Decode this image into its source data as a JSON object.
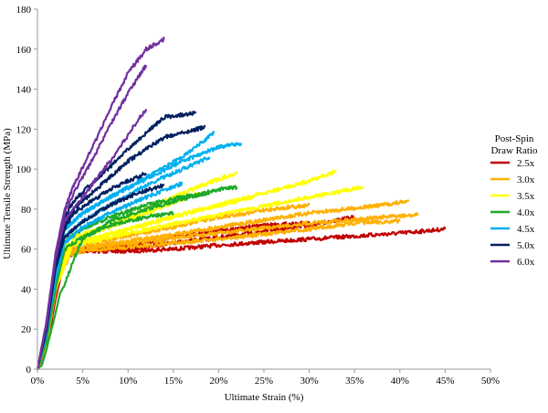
{
  "chart_data": {
    "type": "line",
    "xlabel": "Ultimate  Strain  (%)",
    "ylabel": "Ultimate  Tensile  Strength  (MPa)",
    "xlim": [
      0,
      50
    ],
    "ylim": [
      0,
      180
    ],
    "x_ticks": [
      "0%",
      "5%",
      "10%",
      "15%",
      "20%",
      "25%",
      "30%",
      "35%",
      "40%",
      "45%",
      "50%"
    ],
    "y_ticks": [
      "0",
      "20",
      "40",
      "60",
      "80",
      "100",
      "120",
      "140",
      "160",
      "180"
    ],
    "grid": false,
    "legend": {
      "title_line1": "Post-Spin",
      "title_line2": "Draw Ratio",
      "position": "right"
    },
    "series": [
      {
        "name": "2.5x",
        "color": "#C00000",
        "curves": [
          [
            [
              0,
              0
            ],
            [
              1,
              12
            ],
            [
              2,
              38
            ],
            [
              3,
              58
            ],
            [
              4,
              60
            ],
            [
              6,
              59
            ],
            [
              10,
              59
            ],
            [
              15,
              60
            ],
            [
              20,
              62
            ],
            [
              30,
              65
            ],
            [
              40,
              68
            ],
            [
              45,
              70
            ]
          ],
          [
            [
              0,
              0
            ],
            [
              1,
              15
            ],
            [
              2,
              40
            ],
            [
              3,
              59
            ],
            [
              5,
              60
            ],
            [
              10,
              60
            ],
            [
              15,
              63
            ],
            [
              20,
              66
            ],
            [
              30,
              72
            ],
            [
              35,
              76
            ]
          ],
          [
            [
              0,
              0
            ],
            [
              1,
              10
            ],
            [
              2,
              35
            ],
            [
              3,
              55
            ],
            [
              4,
              58
            ],
            [
              6,
              60
            ],
            [
              10,
              62
            ],
            [
              15,
              66
            ],
            [
              20,
              69
            ],
            [
              25,
              72
            ],
            [
              30,
              73
            ]
          ]
        ]
      },
      {
        "name": "3.0x",
        "color": "#FFB000",
        "curves": [
          [
            [
              0,
              0
            ],
            [
              1,
              15
            ],
            [
              2,
              42
            ],
            [
              3,
              60
            ],
            [
              5,
              61
            ],
            [
              10,
              64
            ],
            [
              20,
              71
            ],
            [
              30,
              78
            ],
            [
              38,
              82
            ],
            [
              41,
              84
            ]
          ],
          [
            [
              0,
              0
            ],
            [
              1,
              14
            ],
            [
              2,
              40
            ],
            [
              3,
              58
            ],
            [
              5,
              60
            ],
            [
              10,
              63
            ],
            [
              20,
              68
            ],
            [
              30,
              73
            ],
            [
              38,
              76
            ],
            [
              42,
              77
            ]
          ],
          [
            [
              0,
              0
            ],
            [
              1,
              12
            ],
            [
              2,
              38
            ],
            [
              3,
              56
            ],
            [
              5,
              59
            ],
            [
              10,
              61
            ],
            [
              20,
              65
            ],
            [
              30,
              70
            ],
            [
              35,
              73
            ],
            [
              40,
              74
            ]
          ],
          [
            [
              0,
              0
            ],
            [
              1,
              13
            ],
            [
              2,
              40
            ],
            [
              4,
              62
            ],
            [
              8,
              65
            ],
            [
              14,
              70
            ],
            [
              20,
              76
            ],
            [
              26,
              80
            ],
            [
              30,
              82
            ]
          ]
        ]
      },
      {
        "name": "3.5x",
        "color": "#FFFF00",
        "curves": [
          [
            [
              0,
              0
            ],
            [
              1,
              16
            ],
            [
              2,
              44
            ],
            [
              3,
              62
            ],
            [
              5,
              64
            ],
            [
              10,
              70
            ],
            [
              20,
              82
            ],
            [
              30,
              94
            ],
            [
              33,
              99
            ]
          ],
          [
            [
              0,
              0
            ],
            [
              1,
              15
            ],
            [
              2,
              42
            ],
            [
              3,
              61
            ],
            [
              5,
              63
            ],
            [
              10,
              68
            ],
            [
              20,
              77
            ],
            [
              30,
              86
            ],
            [
              36,
              91
            ]
          ],
          [
            [
              0,
              0
            ],
            [
              1,
              16
            ],
            [
              2,
              44
            ],
            [
              4,
              66
            ],
            [
              8,
              72
            ],
            [
              12,
              80
            ],
            [
              16,
              88
            ],
            [
              20,
              95
            ],
            [
              22,
              98
            ]
          ],
          [
            [
              0,
              0
            ],
            [
              1,
              15
            ],
            [
              2,
              43
            ],
            [
              4,
              65
            ],
            [
              8,
              71
            ],
            [
              12,
              78
            ],
            [
              16,
              85
            ],
            [
              18,
              88
            ]
          ],
          [
            [
              0,
              0
            ],
            [
              1,
              14
            ],
            [
              2,
              40
            ],
            [
              4,
              63
            ],
            [
              10,
              70
            ],
            [
              18,
              80
            ],
            [
              24,
              86
            ]
          ]
        ]
      },
      {
        "name": "4.0x",
        "color": "#1EAA28",
        "curves": [
          [
            [
              0,
              0
            ],
            [
              0.5,
              2
            ],
            [
              1,
              10
            ],
            [
              2,
              28
            ],
            [
              2.5,
              38
            ],
            [
              3,
              42
            ],
            [
              4,
              55
            ],
            [
              5,
              65
            ],
            [
              8,
              74
            ],
            [
              12,
              80
            ],
            [
              16,
              85
            ],
            [
              20,
              90
            ],
            [
              22,
              91
            ]
          ],
          [
            [
              0,
              0
            ],
            [
              1,
              16
            ],
            [
              2,
              44
            ],
            [
              3,
              64
            ],
            [
              5,
              70
            ],
            [
              8,
              76
            ],
            [
              12,
              82
            ],
            [
              16,
              86
            ],
            [
              19,
              88
            ]
          ],
          [
            [
              0,
              0
            ],
            [
              1,
              14
            ],
            [
              2,
              40
            ],
            [
              3,
              60
            ],
            [
              5,
              66
            ],
            [
              8,
              72
            ],
            [
              12,
              76
            ],
            [
              15,
              78
            ]
          ]
        ]
      },
      {
        "name": "4.5x",
        "color": "#00B0F0",
        "curves": [
          [
            [
              0,
              0
            ],
            [
              1,
              20
            ],
            [
              2,
              52
            ],
            [
              3,
              70
            ],
            [
              5,
              78
            ],
            [
              8,
              86
            ],
            [
              12,
              95
            ],
            [
              16,
              104
            ],
            [
              20,
              111
            ],
            [
              22.5,
              113
            ]
          ],
          [
            [
              0,
              0
            ],
            [
              1,
              20
            ],
            [
              2,
              52
            ],
            [
              3,
              70
            ],
            [
              5,
              78
            ],
            [
              8,
              86
            ],
            [
              12,
              96
            ],
            [
              16,
              106
            ],
            [
              19.5,
              118
            ]
          ],
          [
            [
              0,
              0
            ],
            [
              1,
              18
            ],
            [
              2,
              48
            ],
            [
              3,
              66
            ],
            [
              5,
              74
            ],
            [
              8,
              82
            ],
            [
              12,
              92
            ],
            [
              16,
              100
            ],
            [
              19,
              106
            ]
          ],
          [
            [
              0,
              0
            ],
            [
              1,
              17
            ],
            [
              2,
              45
            ],
            [
              3,
              63
            ],
            [
              5,
              71
            ],
            [
              8,
              78
            ],
            [
              12,
              86
            ],
            [
              16,
              93
            ]
          ]
        ]
      },
      {
        "name": "5.0x",
        "color": "#002060",
        "curves": [
          [
            [
              0,
              0
            ],
            [
              1,
              22
            ],
            [
              2,
              56
            ],
            [
              3,
              76
            ],
            [
              4,
              84
            ],
            [
              6,
              93
            ],
            [
              8,
              101
            ],
            [
              10,
              110
            ],
            [
              12,
              118
            ],
            [
              14,
              126
            ],
            [
              17.5,
              128
            ]
          ],
          [
            [
              0,
              0
            ],
            [
              1,
              21
            ],
            [
              2,
              54
            ],
            [
              3,
              72
            ],
            [
              4,
              80
            ],
            [
              6,
              88
            ],
            [
              8,
              96
            ],
            [
              10,
              104
            ],
            [
              12,
              110
            ],
            [
              14,
              116
            ],
            [
              18.5,
              121
            ]
          ],
          [
            [
              0,
              0
            ],
            [
              1,
              20
            ],
            [
              2,
              52
            ],
            [
              3,
              70
            ],
            [
              4,
              78
            ],
            [
              6,
              84
            ],
            [
              8,
              90
            ],
            [
              10,
              94
            ],
            [
              12,
              98
            ]
          ],
          [
            [
              0,
              0
            ],
            [
              1,
              19
            ],
            [
              2,
              50
            ],
            [
              3,
              66
            ],
            [
              5,
              74
            ],
            [
              8,
              82
            ],
            [
              11,
              88
            ],
            [
              14,
              92
            ]
          ]
        ]
      },
      {
        "name": "6.0x",
        "color": "#7030A0",
        "curves": [
          [
            [
              0,
              0
            ],
            [
              1,
              24
            ],
            [
              2,
              58
            ],
            [
              3,
              80
            ],
            [
              4,
              92
            ],
            [
              6,
              110
            ],
            [
              8,
              130
            ],
            [
              10,
              148
            ],
            [
              12,
              160
            ],
            [
              14,
              165
            ]
          ],
          [
            [
              0,
              0
            ],
            [
              1,
              23
            ],
            [
              2,
              56
            ],
            [
              3,
              78
            ],
            [
              4,
              88
            ],
            [
              6,
              104
            ],
            [
              8,
              122
            ],
            [
              10,
              138
            ],
            [
              12,
              152
            ]
          ],
          [
            [
              0,
              0
            ],
            [
              1,
              22
            ],
            [
              2,
              55
            ],
            [
              3,
              74
            ],
            [
              5,
              86
            ],
            [
              7,
              98
            ],
            [
              9,
              110
            ],
            [
              11,
              124
            ],
            [
              12,
              130
            ]
          ]
        ]
      }
    ]
  }
}
